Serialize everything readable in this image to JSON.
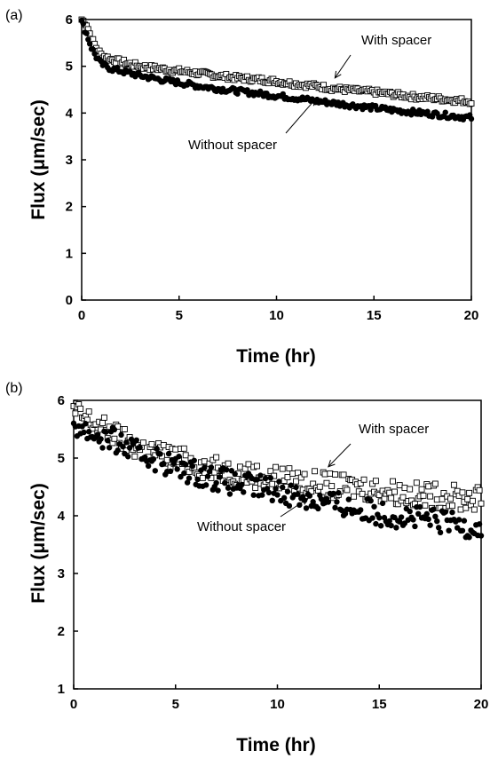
{
  "colors": {
    "open_marker": "#ffffff",
    "filled_marker": "#000000",
    "axis": "#000000"
  },
  "chart_data": [
    {
      "type": "scatter",
      "panel_label": "(a)",
      "xlabel": "Time (hr)",
      "ylabel": "Flux (μm/sec)",
      "xlim": [
        0,
        20
      ],
      "ylim": [
        0,
        6
      ],
      "xticks": [
        "0",
        "5",
        "10",
        "15",
        "20"
      ],
      "yticks": [
        "0",
        "1",
        "2",
        "3",
        "4",
        "5",
        "6"
      ],
      "grid": false,
      "legend": "none",
      "annotations": [
        {
          "text": "With spacer",
          "target_series": "With spacer",
          "at_x": 13.0,
          "at_y": 4.75
        },
        {
          "text": "Without spacer",
          "target_series": "Without spacer",
          "at_x": 12.0,
          "at_y": 4.3
        }
      ],
      "series": [
        {
          "name": "With spacer",
          "marker": "open-square",
          "x": [
            0,
            0.25,
            0.5,
            0.75,
            1,
            1.5,
            2,
            2.5,
            3,
            4,
            5,
            6,
            7,
            8,
            9,
            10,
            11,
            12,
            13,
            14,
            15,
            16,
            17,
            18,
            19,
            20
          ],
          "y": [
            6.0,
            5.9,
            5.6,
            5.4,
            5.25,
            5.15,
            5.1,
            5.05,
            5.0,
            4.95,
            4.9,
            4.85,
            4.8,
            4.75,
            4.72,
            4.68,
            4.62,
            4.58,
            4.52,
            4.48,
            4.45,
            4.4,
            4.35,
            4.32,
            4.28,
            4.25
          ]
        },
        {
          "name": "Without spacer",
          "marker": "filled-circle",
          "x": [
            0,
            0.25,
            0.5,
            0.75,
            1,
            1.5,
            2,
            2.5,
            3,
            4,
            5,
            6,
            7,
            8,
            9,
            10,
            11,
            12,
            13,
            14,
            15,
            16,
            17,
            18,
            19,
            20
          ],
          "y": [
            5.95,
            5.7,
            5.4,
            5.2,
            5.05,
            4.95,
            4.9,
            4.85,
            4.8,
            4.72,
            4.65,
            4.58,
            4.52,
            4.47,
            4.42,
            4.37,
            4.32,
            4.26,
            4.21,
            4.16,
            4.11,
            4.06,
            4.02,
            3.98,
            3.94,
            3.9
          ]
        }
      ]
    },
    {
      "type": "scatter",
      "panel_label": "(b)",
      "xlabel": "Time (hr)",
      "ylabel": "Flux (μm/sec)",
      "xlim": [
        0,
        20
      ],
      "ylim": [
        1,
        6
      ],
      "xticks": [
        "0",
        "5",
        "10",
        "15",
        "20"
      ],
      "yticks": [
        "1",
        "2",
        "3",
        "4",
        "5",
        "6"
      ],
      "grid": false,
      "legend": "none",
      "annotations": [
        {
          "text": "With spacer",
          "target_series": "With spacer",
          "at_x": 12.5,
          "at_y": 4.85
        },
        {
          "text": "Without spacer",
          "target_series": "Without spacer",
          "at_x": 11.5,
          "at_y": 4.3
        }
      ],
      "series": [
        {
          "name": "With spacer",
          "marker": "open-square",
          "x": [
            0,
            0.5,
            1,
            1.5,
            2,
            2.5,
            3,
            4,
            5,
            6,
            7,
            8,
            9,
            10,
            11,
            12,
            13,
            14,
            15,
            16,
            17,
            18,
            19,
            20
          ],
          "y": [
            5.8,
            5.7,
            5.6,
            5.5,
            5.4,
            5.3,
            5.2,
            5.1,
            5.0,
            4.9,
            4.8,
            4.75,
            4.7,
            4.65,
            4.6,
            4.55,
            4.5,
            4.5,
            4.45,
            4.4,
            4.35,
            4.35,
            4.3,
            4.3
          ]
        },
        {
          "name": "Without spacer",
          "marker": "filled-circle",
          "x": [
            0,
            0.5,
            1,
            1.5,
            2,
            2.5,
            3,
            4,
            5,
            6,
            7,
            8,
            9,
            10,
            11,
            12,
            13,
            14,
            15,
            16,
            17,
            18,
            19,
            20
          ],
          "y": [
            5.6,
            5.5,
            5.4,
            5.35,
            5.3,
            5.2,
            5.1,
            5.0,
            4.85,
            4.75,
            4.65,
            4.55,
            4.5,
            4.45,
            4.35,
            4.25,
            4.2,
            4.1,
            4.05,
            4.0,
            3.95,
            3.9,
            3.85,
            3.8
          ]
        }
      ]
    }
  ]
}
